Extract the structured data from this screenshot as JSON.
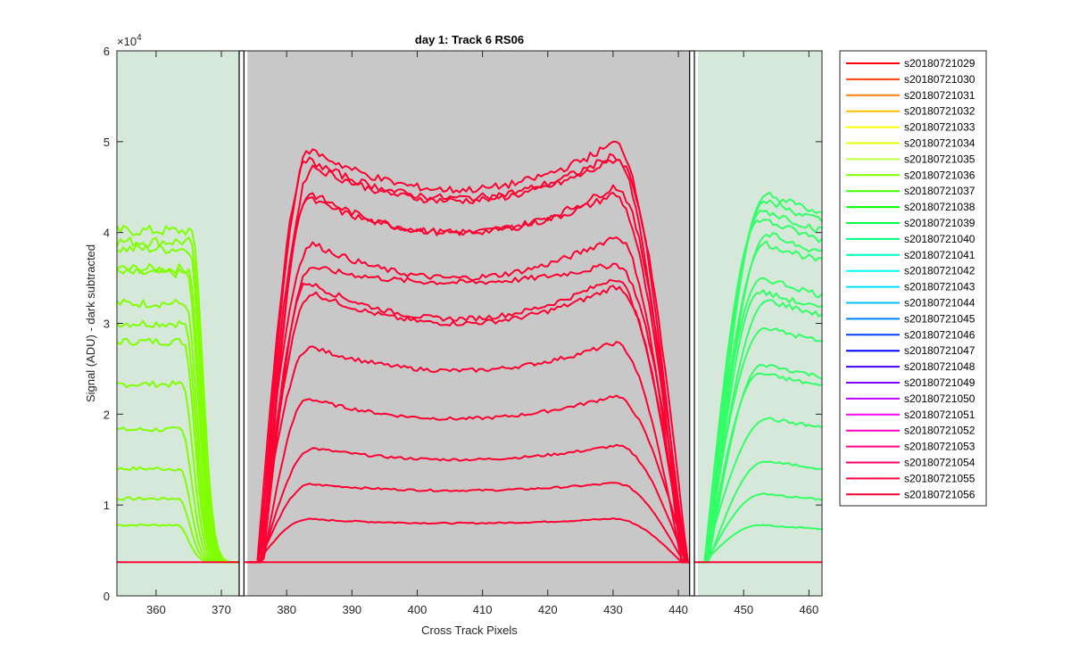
{
  "chart_data": {
    "type": "line",
    "title": "day 1: Track 6  RS06",
    "xlabel": "Cross Track Pixels",
    "ylabel": "Signal (ADU) - dark subtracted",
    "exponent_label": "×10",
    "exponent_power": "4",
    "xlim": [
      354,
      462
    ],
    "ylim": [
      0,
      60000
    ],
    "xticks": [
      360,
      370,
      380,
      390,
      400,
      410,
      420,
      430,
      440,
      450,
      460
    ],
    "yticks": [
      0,
      10000,
      20000,
      30000,
      40000,
      50000,
      60000
    ],
    "ytick_labels": [
      "0",
      "1",
      "2",
      "3",
      "4",
      "5",
      "6"
    ],
    "grid": false,
    "legend_position": "outside-right",
    "regions": [
      {
        "name": "left-band",
        "x": [
          354,
          373
        ],
        "color": "#d5e8d9"
      },
      {
        "name": "center-band",
        "x": [
          374,
          442
        ],
        "color": "#c8c8c8"
      },
      {
        "name": "right-band",
        "x": [
          443,
          462
        ],
        "color": "#d5e8d9"
      }
    ],
    "separators": [
      373,
      374,
      442,
      443
    ],
    "baseline": 3700,
    "left_peaks": [
      7800,
      10700,
      14000,
      18300,
      23300,
      28000,
      30000,
      32200,
      35500,
      36000,
      38200,
      39000,
      40200
    ],
    "center_profiles": [
      {
        "edge": 8500,
        "mid": 8000
      },
      {
        "edge": 12400,
        "mid": 11600
      },
      {
        "edge": 16500,
        "mid": 15000
      },
      {
        "edge": 22000,
        "mid": 19500
      },
      {
        "edge": 27800,
        "mid": 24800
      },
      {
        "edge": 34000,
        "mid": 30000
      },
      {
        "edge": 35000,
        "mid": 30500
      },
      {
        "edge": 36500,
        "mid": 34500
      },
      {
        "edge": 39500,
        "mid": 35000
      },
      {
        "edge": 44200,
        "mid": 40000
      },
      {
        "edge": 45000,
        "mid": 40000
      },
      {
        "edge": 48000,
        "mid": 43500
      },
      {
        "edge": 48500,
        "mid": 43800
      },
      {
        "edge": 49800,
        "mid": 44700
      }
    ],
    "right_peaks": [
      7800,
      11200,
      14800,
      19500,
      24500,
      25500,
      29500,
      32500,
      33500,
      35000,
      38800,
      39800,
      41500,
      42500,
      43500,
      44200
    ],
    "series": [
      {
        "name": "s20180721029",
        "color": "#ff0000"
      },
      {
        "name": "s20180721030",
        "color": "#ff4000"
      },
      {
        "name": "s20180721031",
        "color": "#ff8000"
      },
      {
        "name": "s20180721032",
        "color": "#ffbf00"
      },
      {
        "name": "s20180721033",
        "color": "#ffff00"
      },
      {
        "name": "s20180721034",
        "color": "#e6ff00"
      },
      {
        "name": "s20180721035",
        "color": "#bfff40"
      },
      {
        "name": "s20180721036",
        "color": "#80ff00"
      },
      {
        "name": "s20180721037",
        "color": "#40ff00"
      },
      {
        "name": "s20180721038",
        "color": "#00ff00"
      },
      {
        "name": "s20180721039",
        "color": "#00ff40"
      },
      {
        "name": "s20180721040",
        "color": "#00ff80"
      },
      {
        "name": "s20180721041",
        "color": "#00ffbf"
      },
      {
        "name": "s20180721042",
        "color": "#00ffff"
      },
      {
        "name": "s20180721043",
        "color": "#00e0ff"
      },
      {
        "name": "s20180721044",
        "color": "#00bfff"
      },
      {
        "name": "s20180721045",
        "color": "#0080ff"
      },
      {
        "name": "s20180721046",
        "color": "#0040ff"
      },
      {
        "name": "s20180721047",
        "color": "#0000ff"
      },
      {
        "name": "s20180721048",
        "color": "#4000ff"
      },
      {
        "name": "s20180721049",
        "color": "#8000ff"
      },
      {
        "name": "s20180721050",
        "color": "#bf00ff"
      },
      {
        "name": "s20180721051",
        "color": "#ff00ff"
      },
      {
        "name": "s20180721052",
        "color": "#ff00bf"
      },
      {
        "name": "s20180721053",
        "color": "#ff0080"
      },
      {
        "name": "s20180721054",
        "color": "#ff0060"
      },
      {
        "name": "s20180721055",
        "color": "#ff0040"
      },
      {
        "name": "s20180721056",
        "color": "#ff0030"
      }
    ],
    "colors": {
      "left_curves": "#80ff00",
      "center_curves": "#ff0033",
      "right_curves": "#33ff66",
      "axis": "#262626"
    }
  }
}
